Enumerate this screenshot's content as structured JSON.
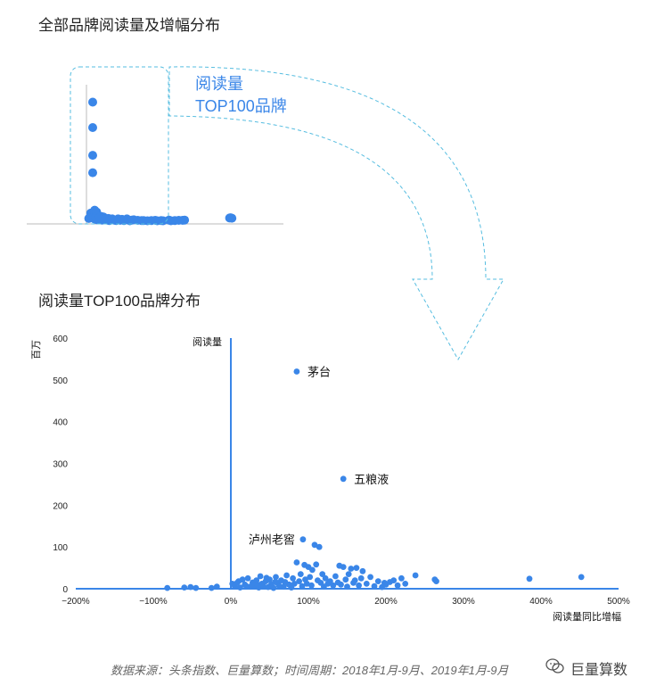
{
  "titles": {
    "overview": "全部品牌阅读量及增幅分布",
    "top100": "阅读量TOP100品牌分布"
  },
  "callout": {
    "line1": "阅读量",
    "line2": "TOP100品牌"
  },
  "source": "数据来源：头条指数、巨量算数；时间周期：2018年1月-9月、2019年1月-9月",
  "watermark": {
    "text": "巨量算数",
    "icon": "wechat-icon"
  },
  "colors": {
    "point": "#3a86e8",
    "axis": "#3a86e8",
    "callout": "#3a86e8",
    "dashed": "#56bde0"
  },
  "chart_data": [
    {
      "type": "scatter",
      "title": "全部品牌阅读量及增幅分布",
      "points": [
        [
          0,
          515
        ],
        [
          0,
          405
        ],
        [
          0,
          285
        ],
        [
          0,
          210
        ],
        [
          -10,
          35
        ],
        [
          -5,
          20
        ],
        [
          5,
          20
        ],
        [
          -20,
          12
        ],
        [
          10,
          48
        ],
        [
          12,
          30
        ],
        [
          18,
          25
        ],
        [
          20,
          40
        ],
        [
          25,
          28
        ],
        [
          30,
          22
        ],
        [
          35,
          12
        ],
        [
          40,
          8
        ],
        [
          45,
          20
        ],
        [
          55,
          18
        ],
        [
          60,
          8
        ],
        [
          70,
          10
        ],
        [
          80,
          12
        ],
        [
          90,
          8
        ],
        [
          100,
          10
        ],
        [
          110,
          5
        ],
        [
          130,
          10
        ],
        [
          150,
          8
        ],
        [
          175,
          10
        ],
        [
          200,
          5
        ],
        [
          230,
          4
        ],
        [
          260,
          3
        ],
        [
          280,
          2
        ],
        [
          300,
          3
        ],
        [
          330,
          2
        ],
        [
          360,
          2
        ],
        [
          390,
          5
        ],
        [
          420,
          3
        ],
        [
          460,
          4
        ],
        [
          470,
          5
        ],
        [
          700,
          14
        ],
        [
          705,
          15
        ],
        [
          712,
          13
        ],
        [
          8,
          10
        ],
        [
          15,
          18
        ],
        [
          22,
          6
        ],
        [
          28,
          14
        ],
        [
          38,
          18
        ],
        [
          48,
          5
        ],
        [
          65,
          12
        ],
        [
          75,
          5
        ],
        [
          85,
          3
        ],
        [
          95,
          6
        ],
        [
          120,
          3
        ],
        [
          140,
          4
        ],
        [
          160,
          3
        ],
        [
          190,
          2
        ],
        [
          210,
          6
        ],
        [
          250,
          3
        ],
        [
          320,
          4
        ],
        [
          350,
          3
        ],
        [
          400,
          2
        ],
        [
          440,
          4
        ]
      ]
    },
    {
      "type": "scatter",
      "title": "阅读量TOP100品牌分布",
      "xlabel": "阅读量同比增幅",
      "ylabel": "百万",
      "zero_axis_label": "阅读量",
      "xlim": [
        -200,
        500
      ],
      "ylim": [
        0,
        600
      ],
      "x_ticks": [
        "−200%",
        "−100%",
        "0%",
        "100%",
        "200%",
        "300%",
        "400%",
        "500%"
      ],
      "y_ticks": [
        "0",
        "100",
        "200",
        "300",
        "400",
        "500",
        "600"
      ],
      "annotations": [
        "茅台",
        "五粮液",
        "泸州老窖"
      ],
      "points": [
        {
          "x": 85,
          "y": 520,
          "label": "茅台"
        },
        {
          "x": 145,
          "y": 263,
          "label": "五粮液"
        },
        {
          "x": 93,
          "y": 118,
          "label": "泸州老窖"
        },
        {
          "x": 108,
          "y": 105
        },
        {
          "x": 114,
          "y": 100
        },
        {
          "x": 85,
          "y": 63
        },
        {
          "x": 95,
          "y": 57
        },
        {
          "x": 100,
          "y": 52
        },
        {
          "x": 105,
          "y": 45
        },
        {
          "x": 110,
          "y": 58
        },
        {
          "x": 140,
          "y": 55
        },
        {
          "x": 145,
          "y": 52
        },
        {
          "x": 155,
          "y": 48
        },
        {
          "x": 162,
          "y": 50
        },
        {
          "x": 170,
          "y": 42
        },
        {
          "x": 238,
          "y": 32
        },
        {
          "x": 263,
          "y": 22
        },
        {
          "x": 265,
          "y": 18
        },
        {
          "x": 385,
          "y": 24
        },
        {
          "x": 452,
          "y": 28
        },
        {
          "x": 220,
          "y": 25
        },
        {
          "x": 198,
          "y": 14
        },
        {
          "x": 200,
          "y": 10
        },
        {
          "x": 215,
          "y": 8
        },
        {
          "x": -82,
          "y": 2
        },
        {
          "x": -60,
          "y": 3
        },
        {
          "x": -52,
          "y": 4
        },
        {
          "x": -45,
          "y": 2
        },
        {
          "x": -25,
          "y": 2
        },
        {
          "x": -18,
          "y": 5
        },
        {
          "x": 2,
          "y": 12
        },
        {
          "x": 5,
          "y": 6
        },
        {
          "x": 10,
          "y": 18
        },
        {
          "x": 12,
          "y": 3
        },
        {
          "x": 15,
          "y": 22
        },
        {
          "x": 18,
          "y": 10
        },
        {
          "x": 22,
          "y": 25
        },
        {
          "x": 25,
          "y": 5
        },
        {
          "x": 28,
          "y": 15
        },
        {
          "x": 30,
          "y": 8
        },
        {
          "x": 33,
          "y": 20
        },
        {
          "x": 36,
          "y": 3
        },
        {
          "x": 38,
          "y": 30
        },
        {
          "x": 40,
          "y": 12
        },
        {
          "x": 42,
          "y": 6
        },
        {
          "x": 45,
          "y": 18
        },
        {
          "x": 48,
          "y": 4
        },
        {
          "x": 50,
          "y": 22
        },
        {
          "x": 52,
          "y": 10
        },
        {
          "x": 55,
          "y": 2
        },
        {
          "x": 58,
          "y": 28
        },
        {
          "x": 60,
          "y": 14
        },
        {
          "x": 62,
          "y": 8
        },
        {
          "x": 65,
          "y": 20
        },
        {
          "x": 68,
          "y": 5
        },
        {
          "x": 70,
          "y": 16
        },
        {
          "x": 72,
          "y": 32
        },
        {
          "x": 75,
          "y": 10
        },
        {
          "x": 78,
          "y": 3
        },
        {
          "x": 80,
          "y": 25
        },
        {
          "x": 82,
          "y": 12
        },
        {
          "x": 88,
          "y": 18
        },
        {
          "x": 90,
          "y": 35
        },
        {
          "x": 92,
          "y": 6
        },
        {
          "x": 96,
          "y": 22
        },
        {
          "x": 98,
          "y": 12
        },
        {
          "x": 102,
          "y": 28
        },
        {
          "x": 104,
          "y": 8
        },
        {
          "x": 112,
          "y": 20
        },
        {
          "x": 116,
          "y": 14
        },
        {
          "x": 118,
          "y": 35
        },
        {
          "x": 120,
          "y": 5
        },
        {
          "x": 122,
          "y": 25
        },
        {
          "x": 125,
          "y": 12
        },
        {
          "x": 128,
          "y": 18
        },
        {
          "x": 132,
          "y": 8
        },
        {
          "x": 135,
          "y": 30
        },
        {
          "x": 138,
          "y": 15
        },
        {
          "x": 142,
          "y": 10
        },
        {
          "x": 148,
          "y": 22
        },
        {
          "x": 150,
          "y": 5
        },
        {
          "x": 152,
          "y": 35
        },
        {
          "x": 158,
          "y": 14
        },
        {
          "x": 160,
          "y": 20
        },
        {
          "x": 165,
          "y": 8
        },
        {
          "x": 168,
          "y": 25
        },
        {
          "x": 175,
          "y": 12
        },
        {
          "x": 180,
          "y": 28
        },
        {
          "x": 185,
          "y": 6
        },
        {
          "x": 190,
          "y": 18
        },
        {
          "x": 195,
          "y": 4
        },
        {
          "x": 205,
          "y": 16
        },
        {
          "x": 210,
          "y": 20
        },
        {
          "x": 225,
          "y": 12
        },
        {
          "x": 8,
          "y": 14
        },
        {
          "x": 20,
          "y": 6
        },
        {
          "x": 34,
          "y": 10
        },
        {
          "x": 46,
          "y": 26
        },
        {
          "x": 57,
          "y": 16
        }
      ]
    }
  ]
}
